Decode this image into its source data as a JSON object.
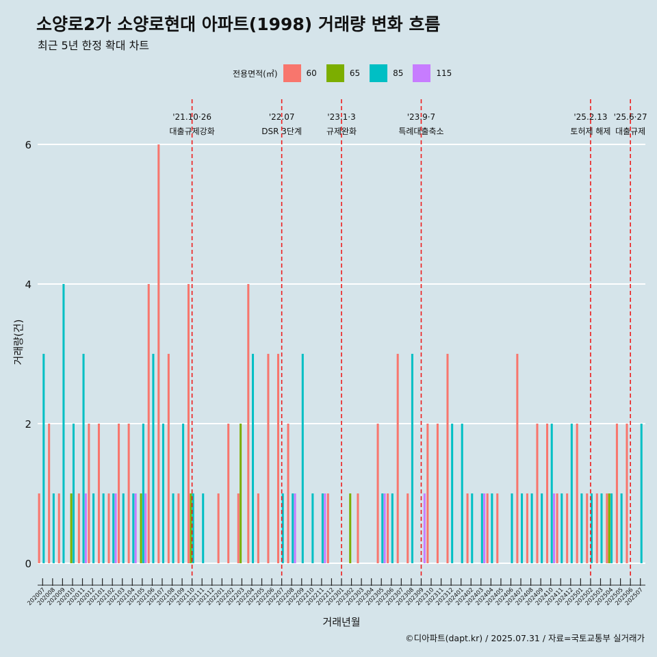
{
  "title": "소양로2가 소양로현대 아파트(1998) 거래량 변화 흐름",
  "subtitle": "최근 5년 한정 확대 차트",
  "caption": "©디아파트(dapt.kr) / 2025.07.31 / 자료=국토교통부 실거래가",
  "legend": {
    "title": "전용면적(㎡)",
    "items": [
      {
        "label": "60",
        "color": "#f8766d"
      },
      {
        "label": "65",
        "color": "#7cae00"
      },
      {
        "label": "85",
        "color": "#00bfc4"
      },
      {
        "label": "115",
        "color": "#c77cff"
      }
    ]
  },
  "chart_data": {
    "type": "bar",
    "title": "소양로2가 소양로현대 아파트(1998) 거래량 변화 흐름",
    "xlabel": "거래년월",
    "ylabel": "거래량(건)",
    "ylim": [
      -0.3,
      6.7
    ],
    "yticks": [
      0,
      2,
      4,
      6
    ],
    "categories": [
      "202007",
      "202008",
      "202009",
      "202010",
      "202011",
      "202012",
      "202101",
      "202102",
      "202103",
      "202104",
      "202105",
      "202106",
      "202107",
      "202108",
      "202109",
      "202110",
      "202111",
      "202112",
      "202201",
      "202202",
      "202203",
      "202204",
      "202205",
      "202206",
      "202207",
      "202208",
      "202209",
      "202210",
      "202211",
      "202212",
      "202301",
      "202302",
      "202303",
      "202304",
      "202305",
      "202306",
      "202307",
      "202308",
      "202309",
      "202310",
      "202311",
      "202312",
      "202401",
      "202402",
      "202403",
      "202404",
      "202405",
      "202406",
      "202407",
      "202408",
      "202409",
      "202410",
      "202411",
      "202412",
      "202501",
      "202502",
      "202503",
      "202504",
      "202505",
      "202506",
      "202507"
    ],
    "series": [
      {
        "name": "60",
        "color": "#f8766d",
        "values": [
          1,
          2,
          1,
          0,
          1,
          2,
          2,
          1,
          2,
          2,
          0,
          4,
          6,
          3,
          1,
          4,
          0,
          0,
          1,
          2,
          1,
          4,
          1,
          3,
          3,
          2,
          0,
          0,
          0,
          1,
          0,
          0,
          1,
          0,
          2,
          1,
          3,
          1,
          0,
          2,
          2,
          3,
          0,
          1,
          0,
          1,
          1,
          0,
          3,
          1,
          2,
          2,
          1,
          1,
          2,
          1,
          1,
          1,
          2,
          2,
          0
        ]
      },
      {
        "name": "65",
        "color": "#7cae00",
        "values": [
          0,
          0,
          0,
          1,
          0,
          0,
          0,
          0,
          0,
          0,
          1,
          0,
          0,
          0,
          0,
          1,
          0,
          0,
          0,
          0,
          2,
          0,
          0,
          0,
          0,
          0,
          0,
          0,
          0,
          0,
          0,
          1,
          0,
          0,
          0,
          0,
          0,
          0,
          0,
          0,
          0,
          0,
          0,
          0,
          0,
          0,
          0,
          0,
          0,
          0,
          0,
          0,
          0,
          0,
          0,
          0,
          0,
          1,
          0,
          0,
          0
        ]
      },
      {
        "name": "85",
        "color": "#00bfc4",
        "values": [
          3,
          1,
          4,
          2,
          3,
          1,
          1,
          1,
          1,
          1,
          2,
          3,
          2,
          1,
          2,
          1,
          1,
          0,
          0,
          0,
          0,
          3,
          0,
          0,
          1,
          1,
          3,
          1,
          1,
          0,
          0,
          0,
          0,
          0,
          1,
          1,
          0,
          3,
          0,
          0,
          0,
          2,
          2,
          1,
          1,
          1,
          0,
          1,
          1,
          1,
          1,
          2,
          1,
          2,
          1,
          1,
          1,
          1,
          1,
          0,
          2
        ]
      },
      {
        "name": "115",
        "color": "#c77cff",
        "values": [
          0,
          0,
          0,
          0,
          1,
          0,
          0,
          1,
          0,
          1,
          1,
          0,
          0,
          0,
          0,
          0,
          0,
          0,
          0,
          0,
          0,
          0,
          0,
          0,
          0,
          1,
          0,
          0,
          1,
          0,
          0,
          0,
          0,
          0,
          1,
          0,
          0,
          0,
          1,
          0,
          0,
          0,
          0,
          0,
          1,
          0,
          0,
          0,
          0,
          0,
          0,
          1,
          0,
          0,
          0,
          0,
          0,
          0,
          0,
          0,
          0
        ]
      }
    ],
    "annotations": [
      {
        "at": "202110",
        "date": "'21.10·26",
        "label": "대출규제강화"
      },
      {
        "at": "202207",
        "date": "'22.07",
        "label": "DSR 3단계"
      },
      {
        "at": "202301",
        "date": "'23.1·3",
        "label": "규제완화"
      },
      {
        "at": "202309",
        "date": "'23.9·7",
        "label": "특례대출축소"
      },
      {
        "at": "202502",
        "date": "'25.2.13",
        "label": "토허제 해제"
      },
      {
        "at": "202506",
        "date": "'25.6·27",
        "label": "대출규제"
      }
    ]
  }
}
